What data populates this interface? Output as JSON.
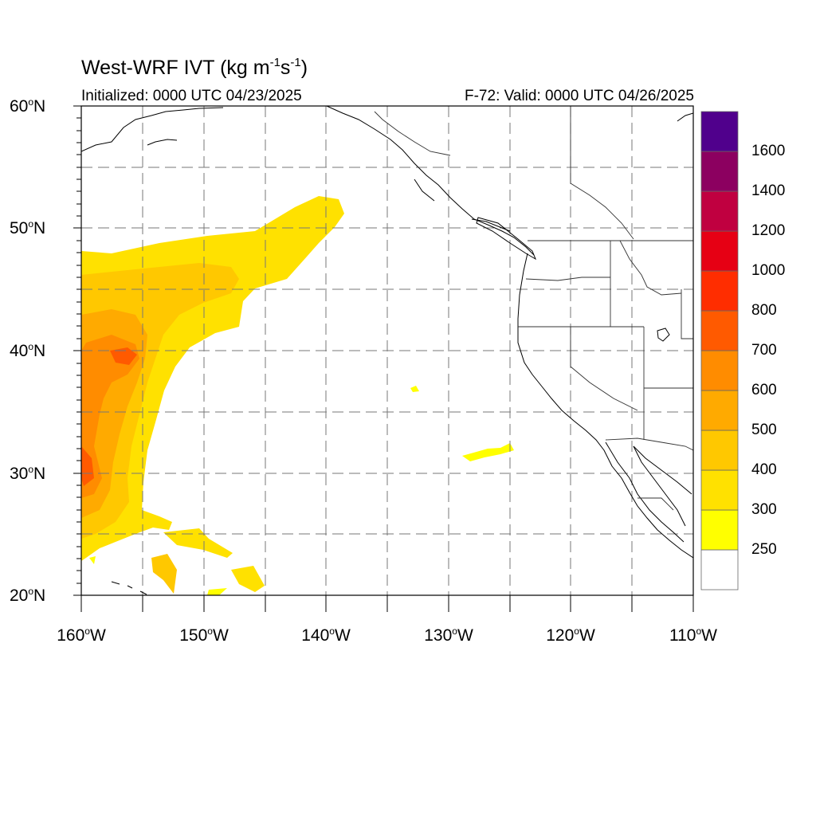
{
  "map": {
    "title_prefix": "West-WRF IVT (kg m",
    "title_sup1": "-1",
    "title_mid": "s",
    "title_sup2": "-1",
    "title_suffix": ")",
    "initialized": "Initialized: 0000 UTC 04/23/2025",
    "valid": "F-72: Valid: 0000 UTC 04/26/2025",
    "lat_labels": [
      {
        "num": "60",
        "hemi": "N"
      },
      {
        "num": "50",
        "hemi": "N"
      },
      {
        "num": "40",
        "hemi": "N"
      },
      {
        "num": "30",
        "hemi": "N"
      },
      {
        "num": "20",
        "hemi": "N"
      }
    ],
    "lon_labels": [
      {
        "num": "160",
        "hemi": "W"
      },
      {
        "num": "150",
        "hemi": "W"
      },
      {
        "num": "140",
        "hemi": "W"
      },
      {
        "num": "130",
        "hemi": "W"
      },
      {
        "num": "120",
        "hemi": "W"
      },
      {
        "num": "110",
        "hemi": "W"
      }
    ],
    "degree_symbol": "o",
    "lat_range": [
      20,
      60
    ],
    "lon_range": [
      -160,
      -110
    ]
  },
  "colorbar": {
    "levels": [
      "250",
      "300",
      "400",
      "500",
      "600",
      "700",
      "800",
      "1000",
      "1200",
      "1400",
      "1600"
    ],
    "colors": [
      "#ffffff",
      "#ffff00",
      "#ffe100",
      "#ffc800",
      "#ffaa00",
      "#ff8c00",
      "#ff5a00",
      "#ff2d00",
      "#e60014",
      "#c00040",
      "#8c0060",
      "#50008c"
    ]
  }
}
